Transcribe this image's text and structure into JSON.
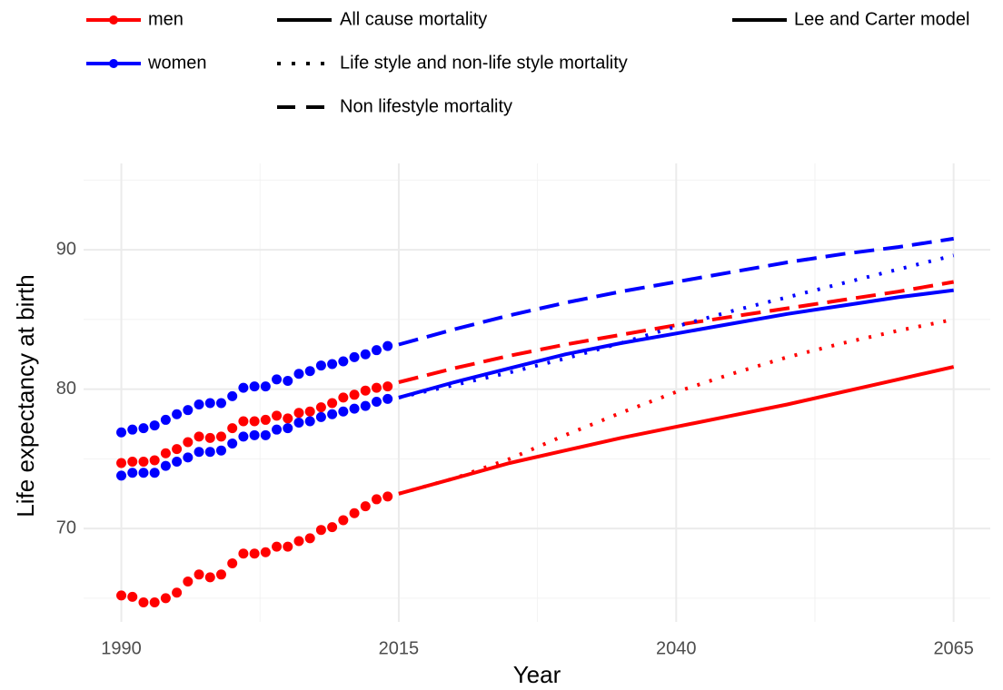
{
  "chart_data": {
    "type": "line",
    "x_label": "Year",
    "y_label": "Life expectancy at birth",
    "xlim": [
      1986.6,
      2068.3
    ],
    "ylim": [
      63.3,
      96.2
    ],
    "xticks": [
      1990,
      2015,
      2040,
      2065
    ],
    "yticks": [
      70,
      80,
      90
    ],
    "minor_xticks": [
      2002.5,
      2027.5,
      2052.5
    ],
    "minor_yticks": [
      65,
      75,
      85,
      95
    ],
    "grid": true,
    "legend": {
      "colors": [
        {
          "name": "men",
          "color": "#ff0000"
        },
        {
          "name": "women",
          "color": "#0000ff"
        }
      ],
      "linetypes": [
        {
          "name": "All cause mortality",
          "dash": "solid"
        },
        {
          "name": "Life style and non-life style mortality",
          "dash": "dotted"
        },
        {
          "name": "Non lifestyle mortality",
          "dash": "dashed"
        }
      ],
      "models": [
        {
          "name": "Lee and Carter model",
          "dash": "solid"
        }
      ]
    },
    "series": [
      {
        "color": "#ff0000",
        "marker": true,
        "linetype": "none",
        "x": [
          1990,
          1991,
          1992,
          1993,
          1994,
          1995,
          1996,
          1997,
          1998,
          1999,
          2000,
          2001,
          2002,
          2003,
          2004,
          2005,
          2006,
          2007,
          2008,
          2009,
          2010,
          2011,
          2012,
          2013,
          2014
        ],
        "values": [
          65.2,
          65.1,
          64.7,
          64.7,
          65.0,
          65.4,
          66.2,
          66.7,
          66.5,
          66.7,
          67.5,
          68.2,
          68.2,
          68.3,
          68.7,
          68.7,
          69.1,
          69.3,
          69.9,
          70.1,
          70.6,
          71.1,
          71.6,
          72.1,
          72.3
        ]
      },
      {
        "color": "#ff0000",
        "marker": true,
        "linetype": "none",
        "x": [
          1990,
          1991,
          1992,
          1993,
          1994,
          1995,
          1996,
          1997,
          1998,
          1999,
          2000,
          2001,
          2002,
          2003,
          2004,
          2005,
          2006,
          2007,
          2008,
          2009,
          2010,
          2011,
          2012,
          2013,
          2014
        ],
        "values": [
          74.7,
          74.8,
          74.8,
          74.9,
          75.4,
          75.7,
          76.2,
          76.6,
          76.5,
          76.6,
          77.2,
          77.7,
          77.7,
          77.8,
          78.1,
          77.9,
          78.3,
          78.4,
          78.7,
          79.0,
          79.4,
          79.6,
          79.9,
          80.1,
          80.2
        ]
      },
      {
        "color": "#0000ff",
        "marker": true,
        "linetype": "none",
        "x": [
          1990,
          1991,
          1992,
          1993,
          1994,
          1995,
          1996,
          1997,
          1998,
          1999,
          2000,
          2001,
          2002,
          2003,
          2004,
          2005,
          2006,
          2007,
          2008,
          2009,
          2010,
          2011,
          2012,
          2013,
          2014
        ],
        "values": [
          73.8,
          74.0,
          74.0,
          74.0,
          74.5,
          74.8,
          75.1,
          75.5,
          75.5,
          75.6,
          76.1,
          76.6,
          76.7,
          76.7,
          77.1,
          77.2,
          77.6,
          77.7,
          78.0,
          78.2,
          78.4,
          78.6,
          78.8,
          79.1,
          79.3
        ]
      },
      {
        "color": "#0000ff",
        "marker": true,
        "linetype": "none",
        "x": [
          1990,
          1991,
          1992,
          1993,
          1994,
          1995,
          1996,
          1997,
          1998,
          1999,
          2000,
          2001,
          2002,
          2003,
          2004,
          2005,
          2006,
          2007,
          2008,
          2009,
          2010,
          2011,
          2012,
          2013,
          2014
        ],
        "values": [
          76.9,
          77.1,
          77.2,
          77.4,
          77.8,
          78.2,
          78.5,
          78.9,
          79.0,
          79.0,
          79.5,
          80.1,
          80.2,
          80.2,
          80.7,
          80.6,
          81.1,
          81.3,
          81.7,
          81.8,
          82.0,
          82.3,
          82.5,
          82.8,
          83.1
        ]
      },
      {
        "color": "#ff0000",
        "marker": false,
        "linetype": "solid",
        "x": [
          2015,
          2020,
          2025,
          2030,
          2035,
          2040,
          2045,
          2050,
          2055,
          2060,
          2065
        ],
        "values": [
          72.5,
          73.6,
          74.7,
          75.6,
          76.5,
          77.3,
          78.1,
          78.9,
          79.8,
          80.7,
          81.6
        ]
      },
      {
        "color": "#ff0000",
        "marker": false,
        "linetype": "dotted",
        "x": [
          2015,
          2020,
          2025,
          2030,
          2035,
          2040,
          2045,
          2050,
          2055,
          2060,
          2065
        ],
        "values": [
          72.5,
          73.6,
          75.0,
          76.7,
          78.3,
          79.8,
          81.1,
          82.3,
          83.3,
          84.2,
          85.0
        ]
      },
      {
        "color": "#ff0000",
        "marker": false,
        "linetype": "dashed",
        "x": [
          2015,
          2020,
          2025,
          2030,
          2035,
          2040,
          2045,
          2050,
          2055,
          2060,
          2065
        ],
        "values": [
          80.5,
          81.5,
          82.4,
          83.2,
          83.9,
          84.6,
          85.2,
          85.8,
          86.4,
          87.0,
          87.7
        ]
      },
      {
        "color": "#0000ff",
        "marker": false,
        "linetype": "solid",
        "x": [
          2015,
          2020,
          2025,
          2030,
          2035,
          2040,
          2045,
          2050,
          2055,
          2060,
          2065
        ],
        "values": [
          79.4,
          80.5,
          81.5,
          82.5,
          83.3,
          84.0,
          84.7,
          85.4,
          86.0,
          86.6,
          87.1
        ]
      },
      {
        "color": "#0000ff",
        "marker": false,
        "linetype": "dotted",
        "x": [
          2015,
          2020,
          2025,
          2030,
          2035,
          2040,
          2045,
          2050,
          2055,
          2060,
          2065
        ],
        "values": [
          79.4,
          80.3,
          81.2,
          82.2,
          83.3,
          84.5,
          85.6,
          86.6,
          87.6,
          88.6,
          89.6
        ]
      },
      {
        "color": "#0000ff",
        "marker": false,
        "linetype": "dashed",
        "x": [
          2015,
          2020,
          2025,
          2030,
          2035,
          2040,
          2045,
          2050,
          2055,
          2060,
          2065
        ],
        "values": [
          83.2,
          84.3,
          85.3,
          86.2,
          87.0,
          87.7,
          88.4,
          89.1,
          89.7,
          90.2,
          90.8
        ]
      }
    ]
  }
}
